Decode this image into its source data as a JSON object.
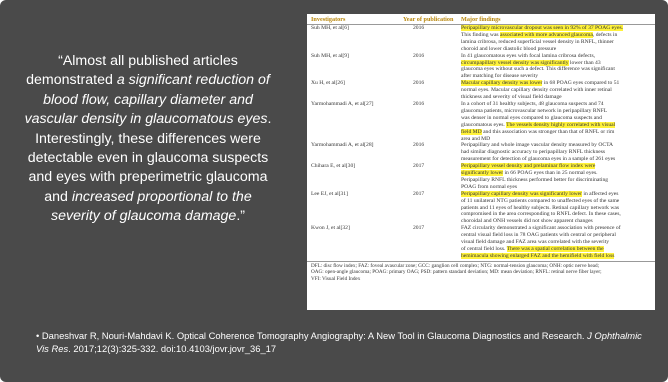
{
  "quote": {
    "p1": "“Almost all published articles demonstrated ",
    "p2": "a significant reduction of blood flow, capillary diameter and vascular density in glaucomatous eyes",
    "p3": ". Interestingly, these differences were detectable even in glaucoma suspects and eyes with preperimetric glaucoma and ",
    "p4": "increased proportional to the severity of glaucoma damage",
    "p5": ".”"
  },
  "table": {
    "headers": [
      "Investigators",
      "Year of publication",
      "Major findings"
    ],
    "rows": [
      {
        "investigator": "Suh MH, et al[6]",
        "year": "2016",
        "lines": [
          [
            {
              "t": "Peripapillary microvascular dropout was seen in 92% of 37 POAG eyes.",
              "h": true
            }
          ],
          [
            {
              "t": "This finding was ",
              "h": false
            },
            {
              "t": "associated with more advanced glaucoma",
              "h": true
            },
            {
              "t": ", defects in",
              "h": false
            }
          ],
          [
            {
              "t": "lamina cribrosa, reduced superficial vessel density in RNFL, thinner",
              "h": false
            }
          ],
          [
            {
              "t": "choroid and lower diastolic blood pressure",
              "h": false
            }
          ]
        ]
      },
      {
        "investigator": "Suh MH, et al[9]",
        "year": "2016",
        "lines": [
          [
            {
              "t": "In 41 glaucomatous eyes with focal lamina cribrosa defects,",
              "h": false
            }
          ],
          [
            {
              "t": "circumpapillary vessel density was significantly",
              "h": true
            },
            {
              "t": " lower than 43",
              "h": false
            }
          ],
          [
            {
              "t": "glaucoma eyes without such a defect. This difference was significant",
              "h": false
            }
          ],
          [
            {
              "t": "after matching for disease severity",
              "h": false
            }
          ]
        ]
      },
      {
        "investigator": "Xu H, et al[26]",
        "year": "2016",
        "lines": [
          [
            {
              "t": "Macular capillary density was lower",
              "h": true
            },
            {
              "t": " in 68 POAG eyes compared to 51",
              "h": false
            }
          ],
          [
            {
              "t": "normal eyes. Macular capillary density correlated with inner retinal",
              "h": false
            }
          ],
          [
            {
              "t": "thickness and severity of visual field damage",
              "h": false
            }
          ]
        ]
      },
      {
        "investigator": "Yarmohammadi A, et al[27]",
        "year": "2016",
        "lines": [
          [
            {
              "t": "In a cohort of 31 healthy subjects, 48 glaucoma suspects and 74",
              "h": false
            }
          ],
          [
            {
              "t": "glaucoma patients, microvascular network in peripapillary RNFL",
              "h": false
            }
          ],
          [
            {
              "t": "was denser in normal eyes compared to glaucoma suspects and",
              "h": false
            }
          ],
          [
            {
              "t": "glaucomatous eyes. ",
              "h": false
            },
            {
              "t": "The vessels density highly correlated with visual",
              "h": true
            }
          ],
          [
            {
              "t": "field MD",
              "h": true
            },
            {
              "t": " and this association was stronger than that of RNFL or rim",
              "h": false
            }
          ],
          [
            {
              "t": "area and MD",
              "h": false
            }
          ]
        ]
      },
      {
        "investigator": "Yarmohammadi A, et al[28]",
        "year": "2016",
        "lines": [
          [
            {
              "t": "Peripapillary and whole image vascular density measured by OCTA",
              "h": false
            }
          ],
          [
            {
              "t": "had similar diagnostic accuracy to peripapillary RNFL thickness",
              "h": false
            }
          ],
          [
            {
              "t": "measurement for detection of glaucoma eyes in a sample of 261 eyes",
              "h": false
            }
          ]
        ]
      },
      {
        "investigator": "Chihara E, et al[30]",
        "year": "2017",
        "lines": [
          [
            {
              "t": "Peripapillary vessel density and prelaminar flow index were",
              "h": true
            }
          ],
          [
            {
              "t": "significantly lower",
              "h": true
            },
            {
              "t": " in 66 POAG eyes than in 25 normal eyes.",
              "h": false
            }
          ],
          [
            {
              "t": "Peripapillary RNFL thickness performed better for discriminating",
              "h": false
            }
          ],
          [
            {
              "t": "POAG from normal eyes",
              "h": false
            }
          ]
        ]
      },
      {
        "investigator": "Lee EJ, et al[31]",
        "year": "2017",
        "lines": [
          [
            {
              "t": "Peripapillary capillary density was significantly lower",
              "h": true
            },
            {
              "t": " in affected eyes",
              "h": false
            }
          ],
          [
            {
              "t": "of 11 unilateral NTG patients compared to unaffected eyes of the same",
              "h": false
            }
          ],
          [
            {
              "t": "patients and 11 eyes of healthy subjects. Retinal capillary network was",
              "h": false
            }
          ],
          [
            {
              "t": "compromised in the area corresponding to RNFL defect. In these cases,",
              "h": false
            }
          ],
          [
            {
              "t": "choroidal and ONH vessels did not show apparent changes",
              "h": false
            }
          ]
        ]
      },
      {
        "investigator": "Kwon J, et al[32]",
        "year": "2017",
        "lines": [
          [
            {
              "t": "FAZ circularity demonstrated a significant association with presence of",
              "h": false
            }
          ],
          [
            {
              "t": "central visual field loss in 78 OAG patients with central or peripheral",
              "h": false
            }
          ],
          [
            {
              "t": "visual field damage and FAZ area was correlated with the severity",
              "h": false
            }
          ],
          [
            {
              "t": "of central field loss. ",
              "h": false
            },
            {
              "t": "There was a spatial correlation between the",
              "h": true
            }
          ],
          [
            {
              "t": "hemimacula showing enlarged FAZ and the hemifield with field loss",
              "h": true
            }
          ]
        ]
      }
    ],
    "footnote": [
      "DFL: disc flow index; FAZ: foveal avascular zone; GCC: ganglion cell complex; NTG: normal-tension glaucoma; ONH: optic nerve head;",
      "OAG: open-angle glaucoma; POAG: primary OAG; PSD: pattern standard deviation; MD: mean deviation; RNFL: retinal nerve fiber layer;",
      "VFI: Visual Field Index"
    ]
  },
  "citation": {
    "prefix": "• Daneshvar R, Nouri-Mahdavi K. Optical Coherence Tomography Angiography: A New Tool in Glaucoma Diagnostics and Research. ",
    "journal": "J Ophthalmic Vis Res",
    "suffix": ". 2017;12(3):325-332. doi:10.4103/jovr.jovr_36_17"
  }
}
